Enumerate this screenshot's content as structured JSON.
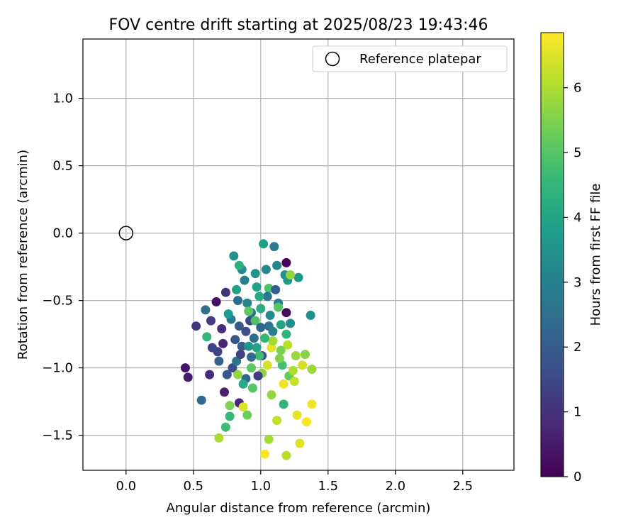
{
  "chart_data": {
    "type": "scatter",
    "title": "FOV centre drift starting at 2025/08/23 19:43:46",
    "xlabel": "Angular distance from reference (arcmin)",
    "ylabel": "Rotation from reference (arcmin)",
    "xlim": [
      -0.32,
      2.88
    ],
    "ylim": [
      -1.76,
      1.44
    ],
    "xticks": [
      0.0,
      0.5,
      1.0,
      1.5,
      2.0,
      2.5
    ],
    "xtick_labels": [
      "0.0",
      "0.5",
      "1.0",
      "1.5",
      "2.0",
      "2.5"
    ],
    "yticks": [
      1.0,
      0.5,
      0.0,
      -0.5,
      -1.0,
      -1.5
    ],
    "ytick_labels": [
      "1.0",
      "0.5",
      "0.0",
      "−0.5",
      "−1.0",
      "−1.5"
    ],
    "grid": true,
    "legend": {
      "position": "top-right",
      "entries": [
        "Reference platepar"
      ]
    },
    "reference_point": {
      "name": "Reference platepar",
      "x": 0.0,
      "y": 0.0
    },
    "colorbar": {
      "label": "Hours from first FF file",
      "colormap": "viridis",
      "range": [
        0,
        6.85
      ],
      "ticks": [
        0,
        1,
        2,
        3,
        4,
        5,
        6
      ],
      "tick_labels": [
        "0",
        "1",
        "2",
        "3",
        "4",
        "5",
        "6"
      ],
      "stops": [
        "#440154",
        "#482878",
        "#3e4989",
        "#31688e",
        "#26828e",
        "#1f9e89",
        "#35b779",
        "#6ece58",
        "#b5de2b",
        "#fde725"
      ]
    },
    "points": [
      [
        1.19,
        -0.22,
        0.1
      ],
      [
        1.19,
        -0.59,
        0.2
      ],
      [
        0.67,
        -0.51,
        0.3
      ],
      [
        0.44,
        -1.0,
        0.4
      ],
      [
        0.46,
        -1.07,
        0.5
      ],
      [
        0.73,
        -1.18,
        0.6
      ],
      [
        0.84,
        -1.26,
        0.7
      ],
      [
        0.62,
        -1.05,
        0.8
      ],
      [
        0.71,
        -0.71,
        0.9
      ],
      [
        0.74,
        -0.44,
        1.0
      ],
      [
        0.52,
        -0.69,
        1.1
      ],
      [
        0.63,
        -0.65,
        1.2
      ],
      [
        0.68,
        -0.88,
        1.3
      ],
      [
        0.64,
        -0.85,
        1.4
      ],
      [
        0.92,
        -0.65,
        1.5
      ],
      [
        0.79,
        -1.0,
        1.6
      ],
      [
        1.01,
        -0.91,
        1.7
      ],
      [
        0.81,
        -0.79,
        1.8
      ],
      [
        0.75,
        -1.05,
        1.9
      ],
      [
        0.86,
        -0.84,
        2.0
      ],
      [
        0.69,
        -0.95,
        2.1
      ],
      [
        0.89,
        -1.08,
        2.2
      ],
      [
        0.56,
        -1.24,
        2.3
      ],
      [
        0.59,
        -0.57,
        2.4
      ],
      [
        0.83,
        -0.5,
        2.5
      ],
      [
        0.95,
        -0.78,
        2.5
      ],
      [
        1.06,
        -0.69,
        2.6
      ],
      [
        0.93,
        -0.59,
        2.7
      ],
      [
        0.78,
        -0.64,
        2.8
      ],
      [
        1.1,
        -0.1,
        2.9
      ],
      [
        1.13,
        -0.52,
        3.0
      ],
      [
        1.09,
        -0.73,
        3.0
      ],
      [
        0.9,
        -0.52,
        3.1
      ],
      [
        1.04,
        -0.27,
        3.2
      ],
      [
        0.86,
        -0.27,
        3.3
      ],
      [
        1.22,
        -0.67,
        3.3
      ],
      [
        1.18,
        -0.31,
        3.4
      ],
      [
        1.37,
        -0.61,
        3.4
      ],
      [
        0.8,
        -0.17,
        3.5
      ],
      [
        0.96,
        -0.3,
        3.5
      ],
      [
        1.28,
        -0.33,
        3.6
      ],
      [
        1.2,
        -0.35,
        3.7
      ],
      [
        1.02,
        -0.08,
        3.8
      ],
      [
        0.82,
        -0.42,
        3.9
      ],
      [
        0.97,
        -0.85,
        4.0
      ],
      [
        0.87,
        -1.12,
        4.1
      ],
      [
        1.0,
        -0.56,
        4.2
      ],
      [
        0.84,
        -0.24,
        4.3
      ],
      [
        1.19,
        -0.75,
        4.4
      ],
      [
        0.6,
        -0.77,
        4.5
      ],
      [
        0.77,
        -1.36,
        4.6
      ],
      [
        0.74,
        -1.44,
        4.7
      ],
      [
        0.99,
        -0.91,
        4.7
      ],
      [
        1.16,
        -0.98,
        4.8
      ],
      [
        1.06,
        -0.41,
        4.9
      ],
      [
        1.13,
        -0.55,
        5.0
      ],
      [
        0.91,
        -0.58,
        5.1
      ],
      [
        0.93,
        -1.0,
        5.1
      ],
      [
        1.21,
        -1.06,
        5.2
      ],
      [
        0.9,
        -1.35,
        5.3
      ],
      [
        1.15,
        -0.87,
        5.4
      ],
      [
        0.77,
        -1.28,
        5.5
      ],
      [
        1.01,
        -1.04,
        5.6
      ],
      [
        1.22,
        -0.31,
        5.7
      ],
      [
        0.83,
        -1.05,
        5.7
      ],
      [
        1.26,
        -0.91,
        5.8
      ],
      [
        1.38,
        -1.01,
        5.8
      ],
      [
        1.06,
        -1.53,
        5.9
      ],
      [
        0.69,
        -1.52,
        6.0
      ],
      [
        1.19,
        -1.65,
        6.1
      ],
      [
        1.12,
        -1.39,
        6.2
      ],
      [
        1.25,
        -1.1,
        6.3
      ],
      [
        1.05,
        -0.98,
        6.4
      ],
      [
        1.31,
        -0.98,
        6.4
      ],
      [
        0.87,
        -1.29,
        6.5
      ],
      [
        1.08,
        -0.85,
        6.6
      ],
      [
        1.17,
        -1.12,
        6.7
      ],
      [
        1.03,
        -1.64,
        6.8
      ],
      [
        1.34,
        -1.4,
        6.8
      ],
      [
        1.38,
        -1.27,
        6.7
      ],
      [
        1.09,
        -0.8,
        5.9
      ],
      [
        1.24,
        -1.02,
        6.0
      ],
      [
        0.84,
        -0.69,
        1.9
      ],
      [
        0.93,
        -0.92,
        2.3
      ],
      [
        1.05,
        -0.47,
        2.7
      ],
      [
        0.88,
        -0.35,
        3.0
      ],
      [
        1.11,
        -0.42,
        2.0
      ],
      [
        0.98,
        -1.06,
        1.2
      ],
      [
        1.03,
        -0.78,
        4.5
      ],
      [
        0.96,
        -0.65,
        4.9
      ],
      [
        1.14,
        -0.93,
        5.5
      ],
      [
        0.91,
        -0.84,
        3.6
      ],
      [
        0.82,
        -0.95,
        2.8
      ],
      [
        1.07,
        -0.61,
        3.3
      ],
      [
        0.99,
        -0.47,
        4.1
      ],
      [
        0.89,
        -0.73,
        1.6
      ],
      [
        0.76,
        -0.6,
        3.7
      ],
      [
        1.15,
        -0.68,
        4.0
      ],
      [
        0.94,
        -1.15,
        5.0
      ],
      [
        1.2,
        -0.83,
        6.1
      ],
      [
        1.27,
        -1.35,
        6.6
      ],
      [
        1.08,
        -1.2,
        5.7
      ],
      [
        0.85,
        -0.9,
        1.4
      ],
      [
        0.72,
        -0.82,
        0.7
      ],
      [
        1.0,
        -0.7,
        2.2
      ],
      [
        0.97,
        -0.4,
        3.9
      ],
      [
        1.12,
        -0.24,
        3.1
      ],
      [
        1.17,
        -1.27,
        4.4
      ],
      [
        1.33,
        -0.9,
        5.6
      ],
      [
        1.29,
        -1.56,
        6.5
      ]
    ]
  }
}
